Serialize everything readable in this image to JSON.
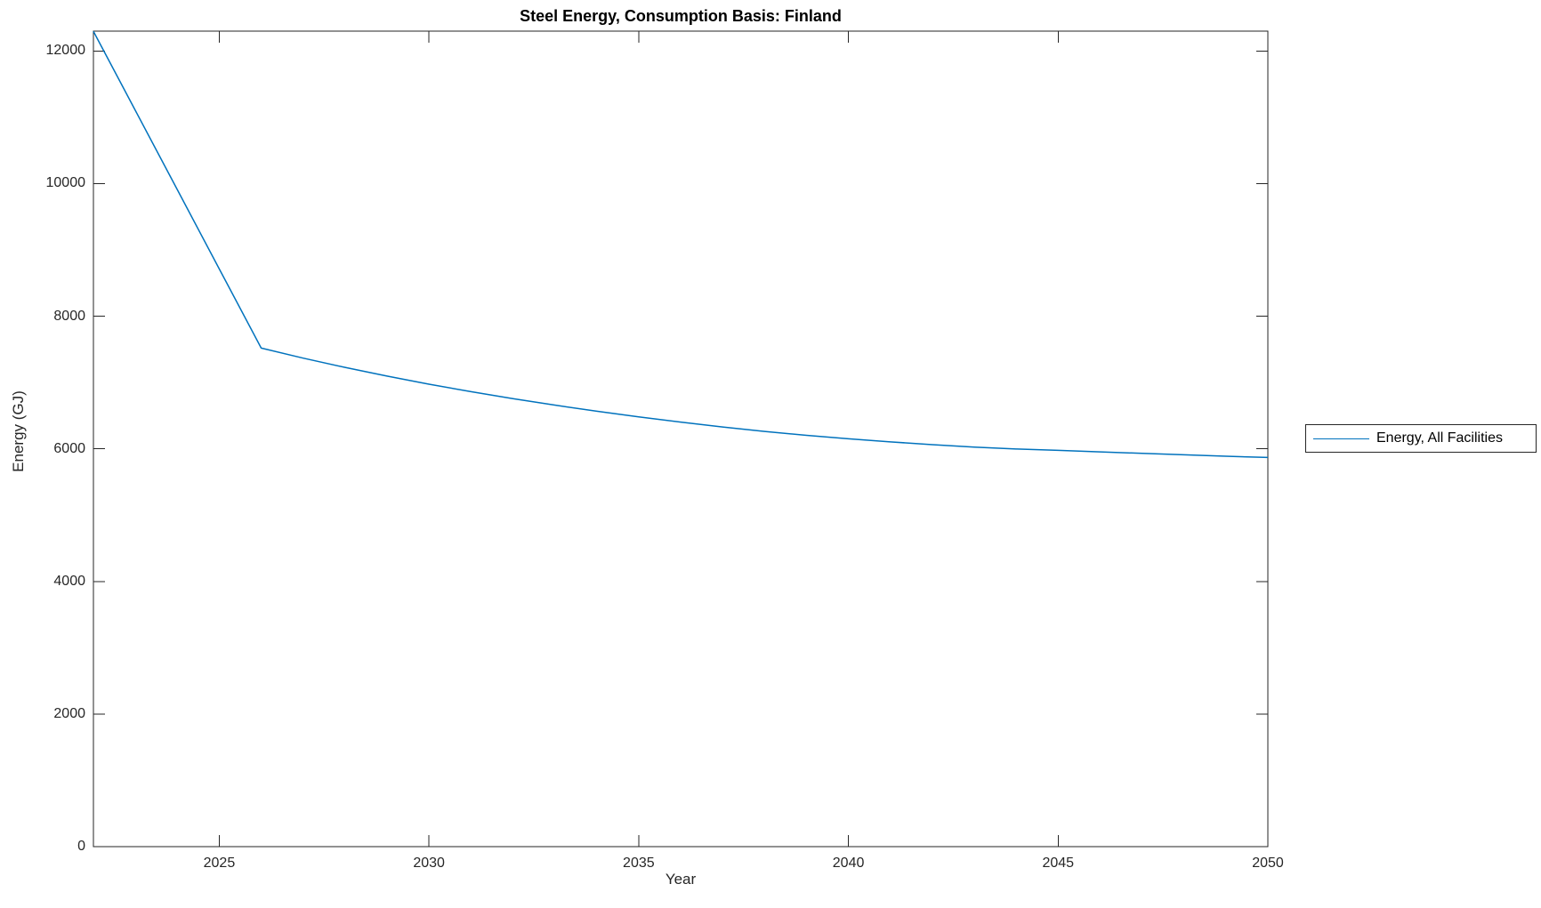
{
  "figure": {
    "title": "Steel Energy, Consumption Basis: Finland",
    "background_color": "#ffffff",
    "axis_color": "#262626",
    "accent_color": "#0072BD"
  },
  "chart_data": {
    "type": "line",
    "title": "Steel Energy, Consumption Basis: Finland",
    "xlabel": "Year",
    "ylabel": "Energy (GJ)",
    "xlim": [
      2022,
      2050
    ],
    "ylim": [
      0,
      12300
    ],
    "xticks": [
      2025,
      2030,
      2035,
      2040,
      2045,
      2050
    ],
    "yticks": [
      0,
      2000,
      4000,
      6000,
      8000,
      10000,
      12000
    ],
    "grid": false,
    "box": true,
    "legend_position": "right-outside",
    "x": [
      2022,
      2023,
      2024,
      2025,
      2026,
      2027,
      2028,
      2029,
      2030,
      2031,
      2032,
      2033,
      2034,
      2035,
      2036,
      2037,
      2038,
      2039,
      2040,
      2041,
      2042,
      2043,
      2044,
      2045,
      2046,
      2047,
      2048,
      2049,
      2050
    ],
    "series": [
      {
        "name": "Energy, All Facilities",
        "color": "#0072BD",
        "values": [
          12297,
          11103,
          9909,
          8714,
          7520,
          7368,
          7228,
          7097,
          6975,
          6862,
          6757,
          6659,
          6567,
          6482,
          6403,
          6330,
          6262,
          6204,
          6152,
          6105,
          6063,
          6026,
          5998,
          5977,
          5953,
          5932,
          5910,
          5888,
          5870
        ]
      }
    ]
  }
}
